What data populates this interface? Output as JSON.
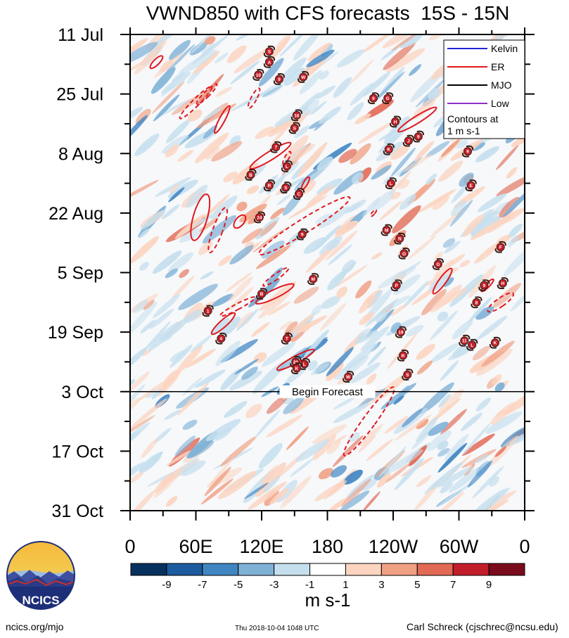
{
  "chart_data": {
    "type": "heatmap",
    "title": "VWND850 with CFS forecasts  15S - 15N",
    "x_ticks": [
      "0",
      "60E",
      "120E",
      "180",
      "120W",
      "60W",
      "0"
    ],
    "x_tick_values": [
      0,
      60,
      120,
      180,
      240,
      300,
      360
    ],
    "x_range": [
      0,
      360
    ],
    "y_ticks": [
      "11 Jul",
      "25 Jul",
      "8 Aug",
      "22 Aug",
      "5 Sep",
      "19 Sep",
      "3 Oct",
      "17 Oct",
      "31 Oct"
    ],
    "y_tick_values": [
      0,
      14,
      28,
      42,
      56,
      70,
      84,
      98,
      112
    ],
    "y_range": [
      0,
      112
    ],
    "forecast_line": {
      "label": "Begin Forecast",
      "day": 84
    },
    "legend": {
      "entries": [
        {
          "name": "Kelvin",
          "color": "#2323d8"
        },
        {
          "name": "ER",
          "color": "#e0191f"
        },
        {
          "name": "MJO",
          "color": "#000000"
        },
        {
          "name": "Low",
          "color": "#8e2ec8"
        }
      ],
      "note": "Contours at\n1 m s-1",
      "placement": "top-right"
    },
    "colorbar": {
      "labels": [
        "-9",
        "-7",
        "-5",
        "-3",
        "-1",
        "1",
        "3",
        "5",
        "7",
        "9"
      ],
      "units": "m s-1",
      "colors": [
        "#08305e",
        "#1c5b9e",
        "#3f85c2",
        "#7fb1d7",
        "#c6dfee",
        "#ffffff",
        "#fcd4c0",
        "#f0a083",
        "#e26a55",
        "#c21e2a",
        "#7a0b1d"
      ]
    },
    "er_contours": [
      {
        "style": "solid",
        "lon": 24,
        "day": 6.5,
        "rx": 4,
        "ry": 12,
        "rot": 45
      },
      {
        "style": "solid",
        "lon": 84,
        "day": 20,
        "rx": 4,
        "ry": 22,
        "rot": 28
      },
      {
        "style": "solid",
        "lon": 128,
        "day": 28.5,
        "rx": 6,
        "ry": 34,
        "rot": 58
      },
      {
        "style": "solid",
        "lon": 160,
        "day": 35,
        "rx": 3,
        "ry": 10,
        "rot": 30
      },
      {
        "style": "solid",
        "lon": 64,
        "day": 43,
        "rx": 10,
        "ry": 34,
        "rot": 16
      },
      {
        "style": "solid",
        "lon": 100,
        "day": 44,
        "rx": 6,
        "ry": 11,
        "rot": 40
      },
      {
        "style": "solid",
        "lon": 132,
        "day": 61,
        "rx": 6,
        "ry": 30,
        "rot": 64
      },
      {
        "style": "solid",
        "lon": 85,
        "day": 68,
        "rx": 5,
        "ry": 22,
        "rot": 48
      },
      {
        "style": "solid",
        "lon": 151,
        "day": 76.5,
        "rx": 5,
        "ry": 30,
        "rot": 62
      },
      {
        "style": "solid",
        "lon": 262,
        "day": 20,
        "rx": 5,
        "ry": 32,
        "rot": 58
      },
      {
        "style": "solid",
        "lon": 285,
        "day": 58,
        "rx": 5,
        "ry": 22,
        "rot": 36
      },
      {
        "style": "solid",
        "lon": 326,
        "day": 59,
        "rx": 3,
        "ry": 12,
        "rot": 45
      },
      {
        "style": "dashed",
        "lon": 60,
        "day": 16,
        "rx": 5,
        "ry": 32,
        "rot": 45
      },
      {
        "style": "dashed",
        "lon": 70,
        "day": 14,
        "rx": 4,
        "ry": 20,
        "rot": 45
      },
      {
        "style": "dashed",
        "lon": 113,
        "day": 15,
        "rx": 4,
        "ry": 16,
        "rot": 28
      },
      {
        "style": "dashed",
        "lon": 143,
        "day": 29,
        "rx": 3,
        "ry": 10,
        "rot": 30
      },
      {
        "style": "dashed",
        "lon": 80,
        "day": 46,
        "rx": 7,
        "ry": 34,
        "rot": 20
      },
      {
        "style": "dashed",
        "lon": 159,
        "day": 45,
        "rx": 10,
        "ry": 76,
        "rot": 58
      },
      {
        "style": "dashed",
        "lon": 222,
        "day": 42,
        "rx": 2,
        "ry": 6,
        "rot": 40
      },
      {
        "style": "dashed",
        "lon": 98,
        "day": 64,
        "rx": 4,
        "ry": 28,
        "rot": 62
      },
      {
        "style": "dashed",
        "lon": 133,
        "day": 57,
        "rx": 4,
        "ry": 22,
        "rot": 55
      },
      {
        "style": "dashed",
        "lon": 143,
        "day": 71,
        "rx": 2,
        "ry": 6,
        "rot": 10
      },
      {
        "style": "dashed",
        "lon": 218,
        "day": 91,
        "rx": 9,
        "ry": 60,
        "rot": 36
      },
      {
        "style": "dashed",
        "lon": 338,
        "day": 63,
        "rx": 6,
        "ry": 22,
        "rot": 55
      }
    ],
    "storms": [
      {
        "label": "S",
        "lon": 127,
        "day": 4
      },
      {
        "label": "A",
        "lon": 127,
        "day": 6.5
      },
      {
        "label": "10",
        "lon": 117,
        "day": 9.5
      },
      {
        "label": "9",
        "lon": 136,
        "day": 10.5
      },
      {
        "label": "W",
        "lon": 158,
        "day": 10
      },
      {
        "label": "9",
        "lon": 222,
        "day": 15
      },
      {
        "label": "G",
        "lon": 235,
        "day": 15
      },
      {
        "label": "16",
        "lon": 152,
        "day": 19
      },
      {
        "label": "H",
        "lon": 242,
        "day": 20.5
      },
      {
        "label": "S",
        "lon": 150,
        "day": 22
      },
      {
        "label": "J",
        "lon": 254,
        "day": 25
      },
      {
        "label": "9",
        "lon": 263,
        "day": 24
      },
      {
        "label": "7",
        "lon": 133,
        "day": 26.5
      },
      {
        "label": "K",
        "lon": 236,
        "day": 27
      },
      {
        "label": "9",
        "lon": 308,
        "day": 27.5
      },
      {
        "label": "L",
        "lon": 143,
        "day": 31
      },
      {
        "label": "B",
        "lon": 110,
        "day": 33
      },
      {
        "label": "R",
        "lon": 127,
        "day": 35.5
      },
      {
        "label": "S",
        "lon": 142,
        "day": 36
      },
      {
        "label": "C",
        "lon": 154,
        "day": 37.5
      },
      {
        "label": "L",
        "lon": 238,
        "day": 35
      },
      {
        "label": "E",
        "lon": 311,
        "day": 35.5
      },
      {
        "label": "24",
        "lon": 118,
        "day": 43
      },
      {
        "label": "M",
        "lon": 234,
        "day": 46
      },
      {
        "label": "9",
        "lon": 157,
        "day": 47
      },
      {
        "label": "N",
        "lon": 246,
        "day": 48
      },
      {
        "label": "F",
        "lon": 338,
        "day": 50
      },
      {
        "label": "O",
        "lon": 250,
        "day": 51.5
      },
      {
        "label": "G",
        "lon": 281,
        "day": 54
      },
      {
        "label": "M",
        "lon": 167,
        "day": 57.5
      },
      {
        "label": "P",
        "lon": 243,
        "day": 59
      },
      {
        "label": "9",
        "lon": 323,
        "day": 59
      },
      {
        "label": "H",
        "lon": 340,
        "day": 58.5
      },
      {
        "label": "B",
        "lon": 120,
        "day": 61
      },
      {
        "label": "8",
        "lon": 316,
        "day": 63
      },
      {
        "label": "1",
        "lon": 71,
        "day": 65
      },
      {
        "label": "19",
        "lon": 247,
        "day": 70
      },
      {
        "label": "4",
        "lon": 83,
        "day": 71.5
      },
      {
        "label": "T",
        "lon": 143,
        "day": 71.5
      },
      {
        "label": "11",
        "lon": 305,
        "day": 72
      },
      {
        "label": "L",
        "lon": 312,
        "day": 73
      },
      {
        "label": "K",
        "lon": 333,
        "day": 72.5
      },
      {
        "label": "R",
        "lon": 249,
        "day": 75.5
      },
      {
        "label": "20",
        "lon": 151,
        "day": 77
      },
      {
        "label": "L",
        "lon": 159,
        "day": 77.5
      },
      {
        "label": "K",
        "lon": 152,
        "day": 78.5
      },
      {
        "label": "S",
        "lon": 253,
        "day": 80
      },
      {
        "label": "W",
        "lon": 199,
        "day": 80.5
      }
    ]
  },
  "credits": {
    "logo_text": "NCICS",
    "site": "ncics.org/mjo",
    "timestamp": "Thu 2018-10-04 1048 UTC",
    "author": "Carl Schreck (cjschrec@ncsu.edu)"
  }
}
